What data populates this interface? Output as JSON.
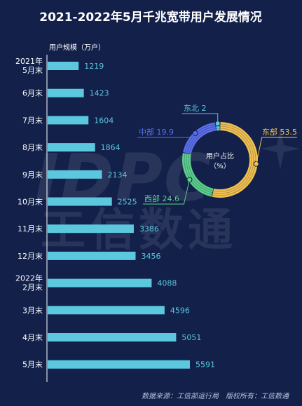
{
  "chart_data": [
    {
      "type": "bar",
      "orientation": "horizontal",
      "title": "2021-2022年5月千兆宽带用户发展情况",
      "ylabel": "用户规模（万户）",
      "categories": [
        "2021年\n5月末",
        "6月末",
        "7月末",
        "8月末",
        "9月末",
        "10月末",
        "11月末",
        "12月末",
        "2022年\n2月末",
        "3月末",
        "4月末",
        "5月末"
      ],
      "values": [
        1219,
        1423,
        1604,
        1864,
        2134,
        2525,
        3386,
        3456,
        4088,
        4596,
        5051,
        5591
      ],
      "colors": {
        "bar": "#5bc8de",
        "value_label": "#5bc8de"
      }
    },
    {
      "type": "pie",
      "variant": "donut",
      "title": "用户占比\n（%）",
      "slices": [
        {
          "label": "东部",
          "value": 53.5,
          "color": "#f2c14e"
        },
        {
          "label": "西部",
          "value": 24.6,
          "color": "#5ccf8a"
        },
        {
          "label": "中部",
          "value": 19.9,
          "color": "#5b6ee8"
        },
        {
          "label": "东北",
          "value": 2,
          "color": "#5bc8de"
        }
      ]
    }
  ],
  "watermark": {
    "letters": "IDPC",
    "text": "工信数通"
  },
  "footer": "数据来源：工信部运行局　版权所有：工信数通",
  "colors": {
    "background": "#12204a",
    "axis": "#ffffff"
  }
}
